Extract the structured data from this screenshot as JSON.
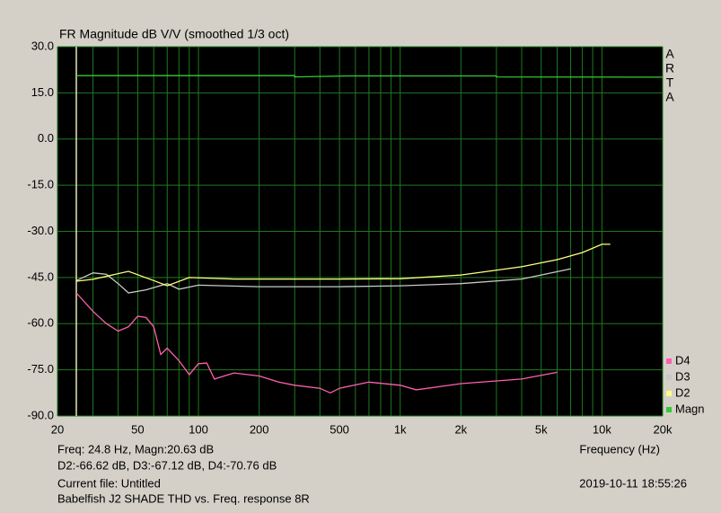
{
  "chart_data": {
    "type": "line",
    "title": "FR Magnitude dB V/V (smoothed 1/3 oct)",
    "x_label": "Frequency (Hz)",
    "side_label": [
      "A",
      "R",
      "T",
      "A"
    ],
    "xscale": "log",
    "xlim": [
      20,
      20000
    ],
    "ylim": [
      -90,
      30
    ],
    "xticks": [
      20,
      50,
      100,
      200,
      500,
      {
        "value": 1000,
        "label": "1k"
      },
      {
        "value": 2000,
        "label": "2k"
      },
      {
        "value": 5000,
        "label": "5k"
      },
      {
        "value": 10000,
        "label": "10k"
      },
      {
        "value": 20000,
        "label": "20k"
      }
    ],
    "x_minor_grid": [
      30,
      40,
      60,
      70,
      80,
      90,
      300,
      400,
      600,
      700,
      800,
      900,
      3000,
      4000,
      6000,
      7000,
      8000,
      9000
    ],
    "yticks": [
      {
        "value": 30,
        "label": "30.0"
      },
      {
        "value": 15,
        "label": "15.0"
      },
      {
        "value": 0,
        "label": "0.0"
      },
      {
        "value": -15,
        "label": "-15.0"
      },
      {
        "value": -30,
        "label": "-30.0"
      },
      {
        "value": -45,
        "label": "-45.0"
      },
      {
        "value": -60,
        "label": "-60.0"
      },
      {
        "value": -75,
        "label": "-75.0"
      },
      {
        "value": -90,
        "label": "-90.0"
      }
    ],
    "grid": true,
    "grid_color": "#1f7a1f",
    "cursor_x": 24.8,
    "cursor_color": "#e8e8b0",
    "series": [
      {
        "name": "D4",
        "color": "#ff5faf",
        "x": [
          24.8,
          30,
          35,
          40,
          45,
          50,
          55,
          60,
          65,
          70,
          80,
          90,
          100,
          110,
          120,
          150,
          200,
          250,
          300,
          400,
          450,
          500,
          700,
          1000,
          1200,
          2000,
          4000,
          6000
        ],
        "values": [
          -50,
          -56,
          -60,
          -62.4,
          -61,
          -57.6,
          -58,
          -61,
          -70,
          -68,
          -72,
          -76.6,
          -73,
          -72.8,
          -78,
          -76,
          -77,
          -79,
          -80,
          -81,
          -82.5,
          -81,
          -79,
          -80,
          -81.5,
          -79.5,
          -78,
          -75.8
        ]
      },
      {
        "name": "D3",
        "color": "#c8c8c8",
        "x": [
          24.8,
          30,
          35,
          40,
          45,
          55,
          70,
          80,
          100,
          200,
          500,
          1000,
          2000,
          4000,
          7000
        ],
        "values": [
          -46,
          -43.5,
          -44,
          -47,
          -50,
          -49,
          -47,
          -48.8,
          -47.5,
          -48,
          -48,
          -47.7,
          -47,
          -45.5,
          -42.2
        ]
      },
      {
        "name": "D2",
        "color": "#ffff80",
        "x": [
          24.8,
          30,
          45,
          60,
          70,
          90,
          150,
          200,
          500,
          1000,
          2000,
          4000,
          6000,
          8000,
          10000,
          11000
        ],
        "values": [
          -46.2,
          -45.6,
          -43,
          -46,
          -47.7,
          -45,
          -45.5,
          -45.5,
          -45.5,
          -45.4,
          -44.2,
          -41.5,
          -39.2,
          -36.9,
          -34.2,
          -34.2
        ]
      },
      {
        "name": "Magn",
        "color": "#33cc33",
        "x": [
          24.8,
          300,
          300,
          560,
          3000,
          3000,
          20000
        ],
        "values": [
          20.6,
          20.6,
          20.2,
          20.5,
          20.5,
          20.2,
          20.1
        ]
      }
    ]
  },
  "info": {
    "line1_left": "Freq: 24.8 Hz, Magn:20.63 dB",
    "line2_left": "D2:-66.62 dB, D3:-67.12 dB, D4:-70.76 dB",
    "line3_left": "Current file: Untitled",
    "line4_left": "Babelfish J2 SHADE THD vs. Freq. response 8R",
    "timestamp": "2019-10-11   18:55:26"
  }
}
